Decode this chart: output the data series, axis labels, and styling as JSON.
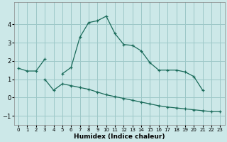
{
  "xlabel": "Humidex (Indice chaleur)",
  "background_color": "#cce8e8",
  "grid_color": "#9dc8c8",
  "line_color": "#1a6b5a",
  "line1_segments": [
    {
      "x": [
        0,
        1,
        2,
        3
      ],
      "y": [
        1.6,
        1.45,
        1.45,
        2.1
      ]
    },
    {
      "x": [
        5,
        6,
        7,
        8,
        9,
        10,
        11,
        12,
        13,
        14,
        15,
        16,
        17,
        18,
        19,
        20,
        21
      ],
      "y": [
        1.3,
        1.65,
        3.3,
        4.1,
        4.2,
        4.45,
        3.5,
        2.9,
        2.85,
        2.55,
        1.9,
        1.5,
        1.5,
        1.5,
        1.4,
        1.15,
        0.4
      ]
    }
  ],
  "line2_x": [
    3,
    4,
    5,
    6,
    7,
    8,
    9,
    10,
    11,
    12,
    13,
    14,
    15,
    16,
    17,
    18,
    19,
    20,
    21,
    22,
    23
  ],
  "line2_y": [
    1.0,
    0.4,
    0.75,
    0.65,
    0.55,
    0.45,
    0.3,
    0.15,
    0.05,
    -0.05,
    -0.15,
    -0.25,
    -0.35,
    -0.45,
    -0.52,
    -0.57,
    -0.62,
    -0.67,
    -0.72,
    -0.77,
    -0.77
  ],
  "ylim": [
    -1.5,
    5.2
  ],
  "xlim": [
    -0.5,
    23.5
  ],
  "yticks": [
    -1,
    0,
    1,
    2,
    3,
    4
  ],
  "xticks": [
    0,
    1,
    2,
    3,
    4,
    5,
    6,
    7,
    8,
    9,
    10,
    11,
    12,
    13,
    14,
    15,
    16,
    17,
    18,
    19,
    20,
    21,
    22,
    23
  ],
  "figsize": [
    3.2,
    2.0
  ],
  "dpi": 100
}
